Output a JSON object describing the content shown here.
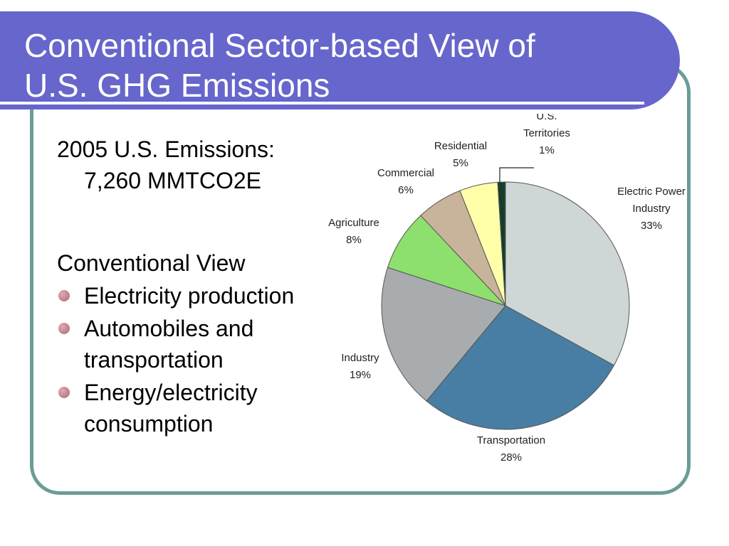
{
  "slide": {
    "title_line1": "Conventional Sector-based View of",
    "title_line2": "U.S. GHG Emissions"
  },
  "body": {
    "emissions_line1": "2005 U.S. Emissions:",
    "emissions_line2": "7,260 MMTCO2E",
    "view_heading": "Conventional View",
    "bullets": [
      "Electricity production",
      "Automobiles and transportation",
      "Energy/electricity consumption"
    ]
  },
  "chart_data": {
    "type": "pie",
    "slices": [
      {
        "label_lines": [
          "Electric Power",
          "Industry"
        ],
        "percent_label": "33%",
        "value": 33,
        "color": "#cfd7d6"
      },
      {
        "label_lines": [
          "Transportation"
        ],
        "percent_label": "28%",
        "value": 28,
        "color": "#487ea3"
      },
      {
        "label_lines": [
          "Industry"
        ],
        "percent_label": "19%",
        "value": 19,
        "color": "#a9acaf"
      },
      {
        "label_lines": [
          "Agriculture"
        ],
        "percent_label": "8%",
        "value": 8,
        "color": "#8ee06e"
      },
      {
        "label_lines": [
          "Commercial"
        ],
        "percent_label": "6%",
        "value": 6,
        "color": "#c8b49a"
      },
      {
        "label_lines": [
          "Residential"
        ],
        "percent_label": "5%",
        "value": 5,
        "color": "#ffffaa"
      },
      {
        "label_lines": [
          "U.S.",
          "Territories"
        ],
        "percent_label": "1%",
        "value": 1,
        "color": "#163d2b"
      }
    ]
  }
}
